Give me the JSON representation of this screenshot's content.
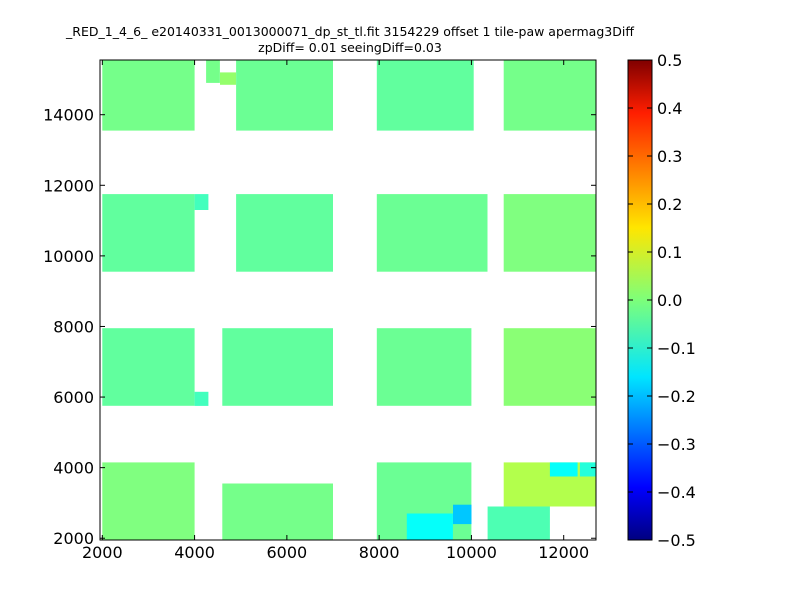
{
  "chart_data": {
    "type": "heatmap",
    "title_lines": [
      "_RED_1_4_6_ e20140331_0013000071_dp_st_tl.fit 3154229 offset 1 tile-paw apermag3Diff",
      "zpDiff= 0.01 seeingDiff=0.03"
    ],
    "xlabel": "",
    "ylabel": "",
    "xlim": [
      1950,
      12700
    ],
    "ylim": [
      1950,
      15550
    ],
    "x_ticks": [
      "2000",
      "4000",
      "6000",
      "8000",
      "10000",
      "12000"
    ],
    "y_ticks": [
      "2000",
      "4000",
      "6000",
      "8000",
      "10000",
      "12000",
      "14000"
    ],
    "colorbar": {
      "min": -0.5,
      "max": 0.5,
      "ticks": [
        "0.5",
        "0.4",
        "0.3",
        "0.2",
        "0.1",
        "0.0",
        "−0.1",
        "−0.2",
        "−0.3",
        "−0.4",
        "−0.5"
      ],
      "colormap": "jet"
    },
    "cell_size": [
      333,
      333
    ],
    "cells": [
      {
        "x0": 2000,
        "x1": 4000,
        "y0": 13550,
        "y1": 15550,
        "value": -0.01
      },
      {
        "x0": 4250,
        "x1": 4550,
        "y0": 14900,
        "y1": 15550,
        "value": -0.01
      },
      {
        "x0": 4550,
        "x1": 4900,
        "y0": 14850,
        "y1": 15200,
        "value": 0.02
      },
      {
        "x0": 4900,
        "x1": 7000,
        "y0": 13550,
        "y1": 15550,
        "value": -0.02
      },
      {
        "x0": 7950,
        "x1": 10050,
        "y0": 13550,
        "y1": 15550,
        "value": -0.03
      },
      {
        "x0": 10700,
        "x1": 12700,
        "y0": 13550,
        "y1": 15550,
        "value": -0.01
      },
      {
        "x0": 2000,
        "x1": 4000,
        "y0": 9550,
        "y1": 11750,
        "value": -0.03
      },
      {
        "x0": 4000,
        "x1": 4300,
        "y0": 11300,
        "y1": 11750,
        "value": -0.06
      },
      {
        "x0": 4900,
        "x1": 7000,
        "y0": 9550,
        "y1": 11750,
        "value": -0.03
      },
      {
        "x0": 7950,
        "x1": 10350,
        "y0": 9550,
        "y1": 11750,
        "value": -0.02
      },
      {
        "x0": 10700,
        "x1": 12700,
        "y0": 9550,
        "y1": 11750,
        "value": 0.0
      },
      {
        "x0": 2000,
        "x1": 4000,
        "y0": 5750,
        "y1": 7950,
        "value": -0.03
      },
      {
        "x0": 4000,
        "x1": 4300,
        "y0": 5750,
        "y1": 6150,
        "value": -0.06
      },
      {
        "x0": 4600,
        "x1": 7000,
        "y0": 5750,
        "y1": 7950,
        "value": -0.03
      },
      {
        "x0": 7950,
        "x1": 10000,
        "y0": 5750,
        "y1": 7950,
        "value": -0.02
      },
      {
        "x0": 10700,
        "x1": 12700,
        "y0": 5750,
        "y1": 7950,
        "value": 0.01
      },
      {
        "x0": 2000,
        "x1": 4000,
        "y0": 1950,
        "y1": 4150,
        "value": 0.0
      },
      {
        "x0": 4600,
        "x1": 7000,
        "y0": 1950,
        "y1": 3550,
        "value": -0.01
      },
      {
        "x0": 7950,
        "x1": 10000,
        "y0": 1950,
        "y1": 4150,
        "value": -0.02
      },
      {
        "x0": 8600,
        "x1": 9600,
        "y0": 1950,
        "y1": 2700,
        "value": -0.12
      },
      {
        "x0": 9600,
        "x1": 10000,
        "y0": 2400,
        "y1": 2950,
        "value": -0.18
      },
      {
        "x0": 10350,
        "x1": 11700,
        "y0": 1950,
        "y1": 2900,
        "value": -0.05
      },
      {
        "x0": 10700,
        "x1": 12700,
        "y0": 2900,
        "y1": 4150,
        "value": 0.05
      },
      {
        "x0": 11700,
        "x1": 12300,
        "y0": 3750,
        "y1": 4150,
        "value": -0.12
      },
      {
        "x0": 12350,
        "x1": 12700,
        "y0": 3750,
        "y1": 4150,
        "value": -0.09
      }
    ]
  }
}
